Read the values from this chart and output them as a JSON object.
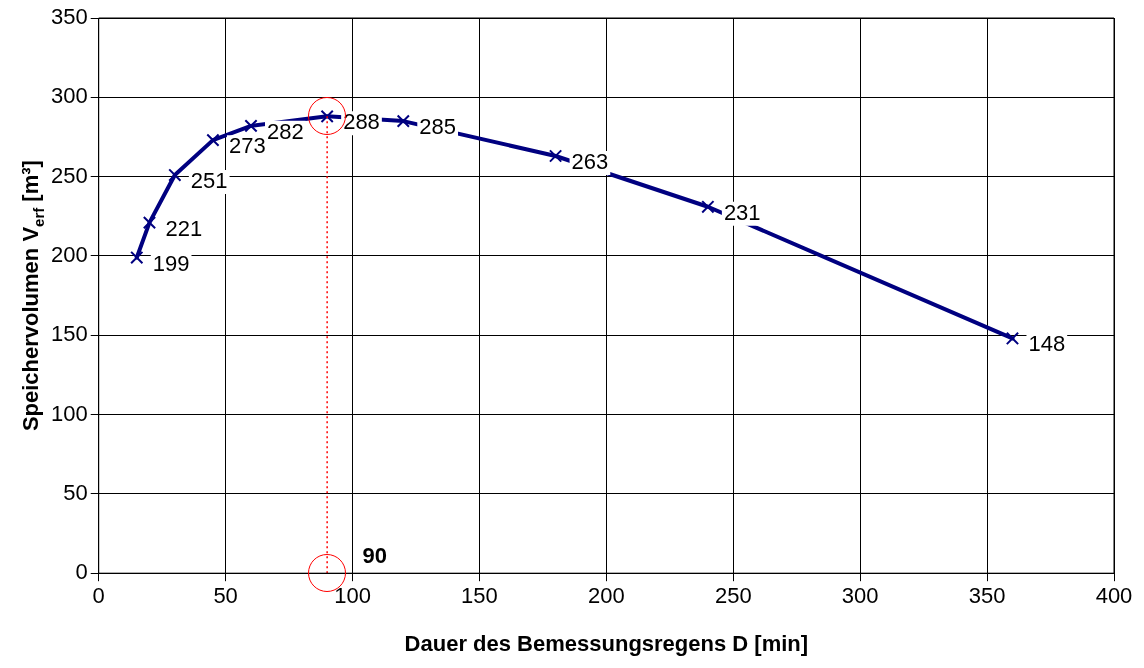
{
  "chart_data": {
    "type": "line",
    "xlabel": "Dauer des Bemessungsregens D [min]",
    "ylabel": "Speichervolumen V$_{erf}$ [m³]",
    "x": [
      15,
      20,
      30,
      45,
      60,
      90,
      120,
      180,
      240,
      360
    ],
    "series": [
      {
        "color": "#000080",
        "values": [
          199,
          221,
          251,
          273,
          282,
          288,
          285,
          263,
          231,
          148
        ]
      }
    ],
    "xlim": [
      0,
      400
    ],
    "xticks": [
      0,
      50,
      100,
      150,
      200,
      250,
      300,
      350,
      400
    ],
    "ylim": [
      0,
      350
    ],
    "yticks": [
      0,
      50,
      100,
      150,
      200,
      250,
      300,
      350
    ],
    "grid": true,
    "legend": false,
    "marker": "cross",
    "line_style": "solid",
    "data_labels": true,
    "ref_lines": [
      {
        "axis": "x",
        "value": 90,
        "label": "90",
        "color": "#ff0000",
        "line_style": "dotted"
      }
    ]
  }
}
